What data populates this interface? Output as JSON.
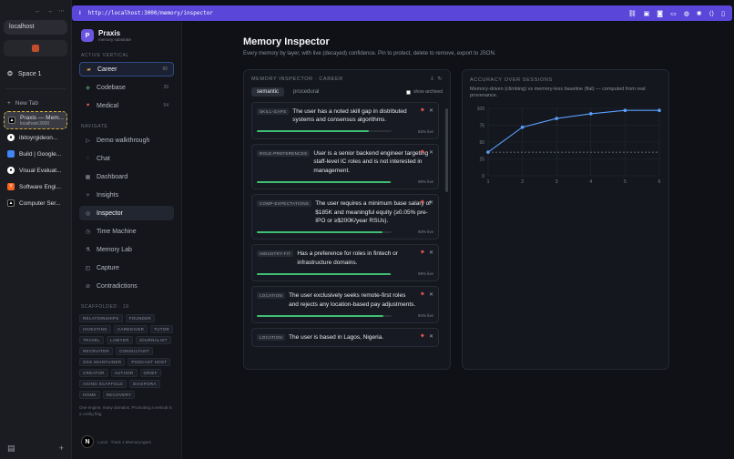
{
  "browser": {
    "nav_back": "←",
    "nav_forward": "→",
    "nav_more": "⋯",
    "url_text": "localhost",
    "space_label": "Space 1",
    "new_tab_label": "New Tab",
    "tabs": [
      {
        "title": "Praxis — Mem...",
        "subtitle": "localhost:3000",
        "icon": "praxis-icon",
        "color": "#000000"
      },
      {
        "title": "ibitoyrgideon...",
        "icon": "github-icon",
        "color": "#ffffff"
      },
      {
        "title": "Build | Google...",
        "icon": "google-ai-studio-icon",
        "color": "#4285f4"
      },
      {
        "title": "Visual Evaluat...",
        "icon": "github-icon",
        "color": "#ffffff"
      },
      {
        "title": "Software Engi...",
        "icon": "y-combinator-icon",
        "color": "#f26522"
      },
      {
        "title": "Computer Ser...",
        "icon": "praxis-icon",
        "color": "#000000"
      }
    ]
  },
  "address_bar": {
    "url": "http://localhost:3000/memory/inspector",
    "accent": "#5a46d8"
  },
  "app": {
    "brand_name": "Praxis",
    "brand_sub": "memory substrate",
    "brand_letter": "P",
    "active_vertical_heading": "ACTIVE VERTICAL",
    "verticals": [
      {
        "label": "Career",
        "count": "88",
        "icon": "briefcase-icon"
      },
      {
        "label": "Codebase",
        "count": "39",
        "icon": "code-icon"
      },
      {
        "label": "Medical",
        "count": "54",
        "icon": "heart-icon"
      }
    ],
    "navigate_heading": "NAVIGATE",
    "nav_items": [
      {
        "label": "Demo walkthrough",
        "icon": "play-icon"
      },
      {
        "label": "Chat",
        "icon": "chat-icon"
      },
      {
        "label": "Dashboard",
        "icon": "dashboard-icon"
      },
      {
        "label": "Insights",
        "icon": "insights-icon"
      },
      {
        "label": "Inspector",
        "icon": "inspector-icon"
      },
      {
        "label": "Time Machine",
        "icon": "clock-icon"
      },
      {
        "label": "Memory Lab",
        "icon": "lab-icon"
      },
      {
        "label": "Capture",
        "icon": "capture-icon"
      },
      {
        "label": "Contradictions",
        "icon": "contradiction-icon"
      }
    ],
    "scaffolded_heading": "SCAFFOLDED · 19",
    "scaffolded": [
      "RELATIONSHIPS",
      "FOUNDER",
      "INVESTING",
      "CAREGIVER",
      "TUTOR",
      "TRAVEL",
      "LAWYER",
      "JOURNALIST",
      "RECRUITER",
      "CONSULTANT",
      "OSS MAINTAINER",
      "PODCAST HOST",
      "CREATOR",
      "AUTHOR",
      "GRIEF",
      "AGING SCAFFOLD",
      "DIASPORA",
      "HOME",
      "RECOVERY"
    ],
    "footer_note": "One engine, many domains. Promoting a vertical is a config flag.",
    "bottom_avatar": "N",
    "bottom_note": "Local · Track 1 MemoryAgent"
  },
  "page": {
    "title": "Memory Inspector",
    "subtitle": "Every memory by layer, with live (decayed) confidence. Pin to protect, delete to remove, export to JSON."
  },
  "memory_panel": {
    "heading": "MEMORY INSPECTOR · CAREER",
    "tabs": [
      "semantic",
      "procedural"
    ],
    "active_tab": "semantic",
    "show_archived": "show archived",
    "memories": [
      {
        "label": "SKILL-GAPS",
        "text": "The user has a noted skill gap in distributed systems and consensus algorithms.",
        "confidence": 0.83,
        "pct_label": "83% live"
      },
      {
        "label": "ROLE-PREFERENCES",
        "text": "User is a senior backend engineer targeting staff-level IC roles and is not interested in management.",
        "confidence": 0.99,
        "pct_label": "99% live"
      },
      {
        "label": "COMP-EXPECTATIONS",
        "text": "The user requires a minimum base salary of $185K and meaningful equity (≥0.05% pre-IPO or ≥$200K/year RSUs).",
        "confidence": 0.93,
        "pct_label": "93% live"
      },
      {
        "label": "INDUSTRY-FIT",
        "text": "Has a preference for roles in fintech or infrastructure domains.",
        "confidence": 0.99,
        "pct_label": "99% live"
      },
      {
        "label": "LOCATION",
        "text": "The user exclusively seeks remote-first roles and rejects any location-based pay adjustments.",
        "confidence": 0.94,
        "pct_label": "94% live"
      },
      {
        "label": "LOCATION",
        "text": "The user is based in Lagos, Nigeria.",
        "confidence": null,
        "pct_label": ""
      }
    ]
  },
  "accuracy_panel": {
    "heading": "ACCURACY OVER SESSIONS",
    "subtitle": "Memory-driven (climbing) vs memory-less baseline (flat) — computed from real provenance."
  },
  "chart_data": {
    "type": "line",
    "title": "ACCURACY OVER SESSIONS",
    "x": [
      1,
      2,
      3,
      4,
      5,
      6
    ],
    "series": [
      {
        "values": [
          35,
          72,
          85,
          92,
          97,
          97
        ],
        "color": "#5aa0ff",
        "style": "solid"
      },
      {
        "values": [
          35,
          35,
          35,
          35,
          35,
          35
        ],
        "color": "#7b808a",
        "style": "dashed"
      }
    ],
    "yticks": [
      0,
      25,
      50,
      75,
      100
    ],
    "xticks": [
      1,
      2,
      3,
      4,
      5,
      6
    ],
    "ylim": [
      0,
      100
    ],
    "xlim": [
      1,
      6
    ],
    "grid": true
  }
}
